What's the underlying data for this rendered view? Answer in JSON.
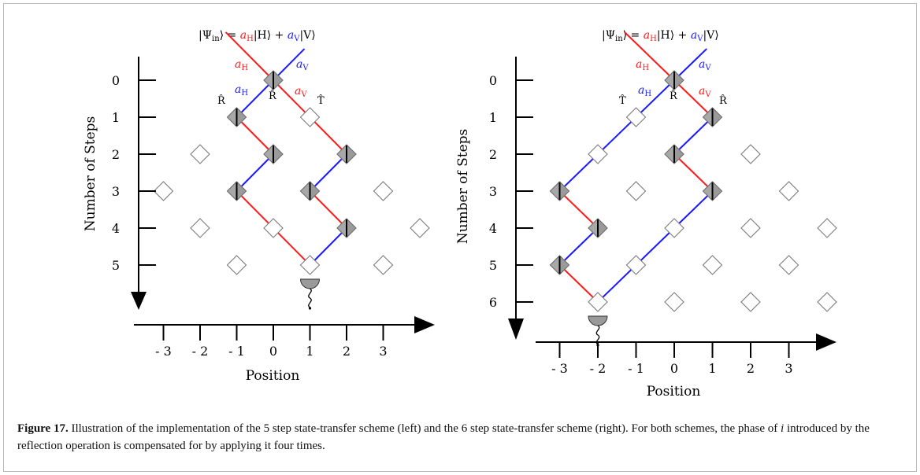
{
  "figure": {
    "caption_label": "Figure 17.",
    "caption_text_1": " Illustration of the implementation of the 5 step state-transfer scheme (left) and the 6 step state-transfer scheme (right). For both schemes, the phase of ",
    "caption_var": "i",
    "caption_text_2": " introduced by the reflection operation is compensated for by applying it four times."
  },
  "colors": {
    "horizontal_path": "#ff1a1a",
    "vertical_path": "#1a1aff",
    "active_element": "#9a9a9a",
    "inactive_element": "#ffffff"
  },
  "input_state": {
    "lhs": "|Ψ",
    "lhs_sub": "in",
    "eq_a_h": "a",
    "sub_h": "H",
    "ket_h": "|H⟩ + ",
    "eq_a_v": "a",
    "sub_v": "V",
    "ket_v": "|V⟩"
  },
  "symbols": {
    "reflect": "R̂",
    "transmit": "T̂",
    "amp": "a",
    "sub_h": "H",
    "sub_v": "V"
  },
  "panels": [
    {
      "name": "5-step",
      "y_axis_label": "Number of Steps",
      "x_axis_label": "Position",
      "step_ticks": [
        "0",
        "1",
        "2",
        "3",
        "4",
        "5"
      ],
      "position_ticks": [
        "- 3",
        "- 2",
        "- 1",
        "0",
        "1",
        "2",
        "3"
      ],
      "steps": 5,
      "active": [
        [
          0,
          0
        ],
        [
          -1,
          1
        ],
        [
          0,
          2
        ],
        [
          2,
          2
        ],
        [
          -1,
          3
        ],
        [
          1,
          3
        ],
        [
          2,
          4
        ]
      ],
      "inactive": [
        [
          1,
          1
        ],
        [
          -2,
          2
        ],
        [
          -3,
          3
        ],
        [
          3,
          3
        ],
        [
          -2,
          4
        ],
        [
          0,
          4
        ],
        [
          4,
          4
        ],
        [
          -1,
          5
        ],
        [
          1,
          5
        ],
        [
          3,
          5
        ]
      ],
      "red_path": [
        [
          0,
          0
        ],
        [
          -1,
          1
        ],
        [
          0,
          2
        ],
        [
          -1,
          3
        ],
        [
          1,
          5
        ],
        [
          2,
          4
        ],
        [
          1,
          3
        ],
        [
          2,
          2
        ],
        [
          0,
          0
        ]
      ],
      "detector_position": 1
    },
    {
      "name": "6-step",
      "y_axis_label": "Number of Steps",
      "x_axis_label": "Position",
      "step_ticks": [
        "0",
        "1",
        "2",
        "3",
        "4",
        "5",
        "6"
      ],
      "position_ticks": [
        "- 3",
        "- 2",
        "- 1",
        "0",
        "1",
        "2",
        "3"
      ],
      "steps": 6,
      "active": [
        [
          0,
          0
        ],
        [
          1,
          1
        ],
        [
          0,
          2
        ],
        [
          1,
          3
        ],
        [
          -3,
          3
        ],
        [
          -2,
          4
        ],
        [
          -3,
          5
        ]
      ],
      "inactive": [
        [
          -1,
          1
        ],
        [
          -2,
          2
        ],
        [
          2,
          2
        ],
        [
          -1,
          3
        ],
        [
          3,
          3
        ],
        [
          0,
          4
        ],
        [
          2,
          4
        ],
        [
          4,
          4
        ],
        [
          -1,
          5
        ],
        [
          1,
          5
        ],
        [
          3,
          5
        ],
        [
          -2,
          6
        ],
        [
          0,
          6
        ],
        [
          2,
          6
        ],
        [
          4,
          6
        ]
      ],
      "detector_position": -2
    }
  ]
}
